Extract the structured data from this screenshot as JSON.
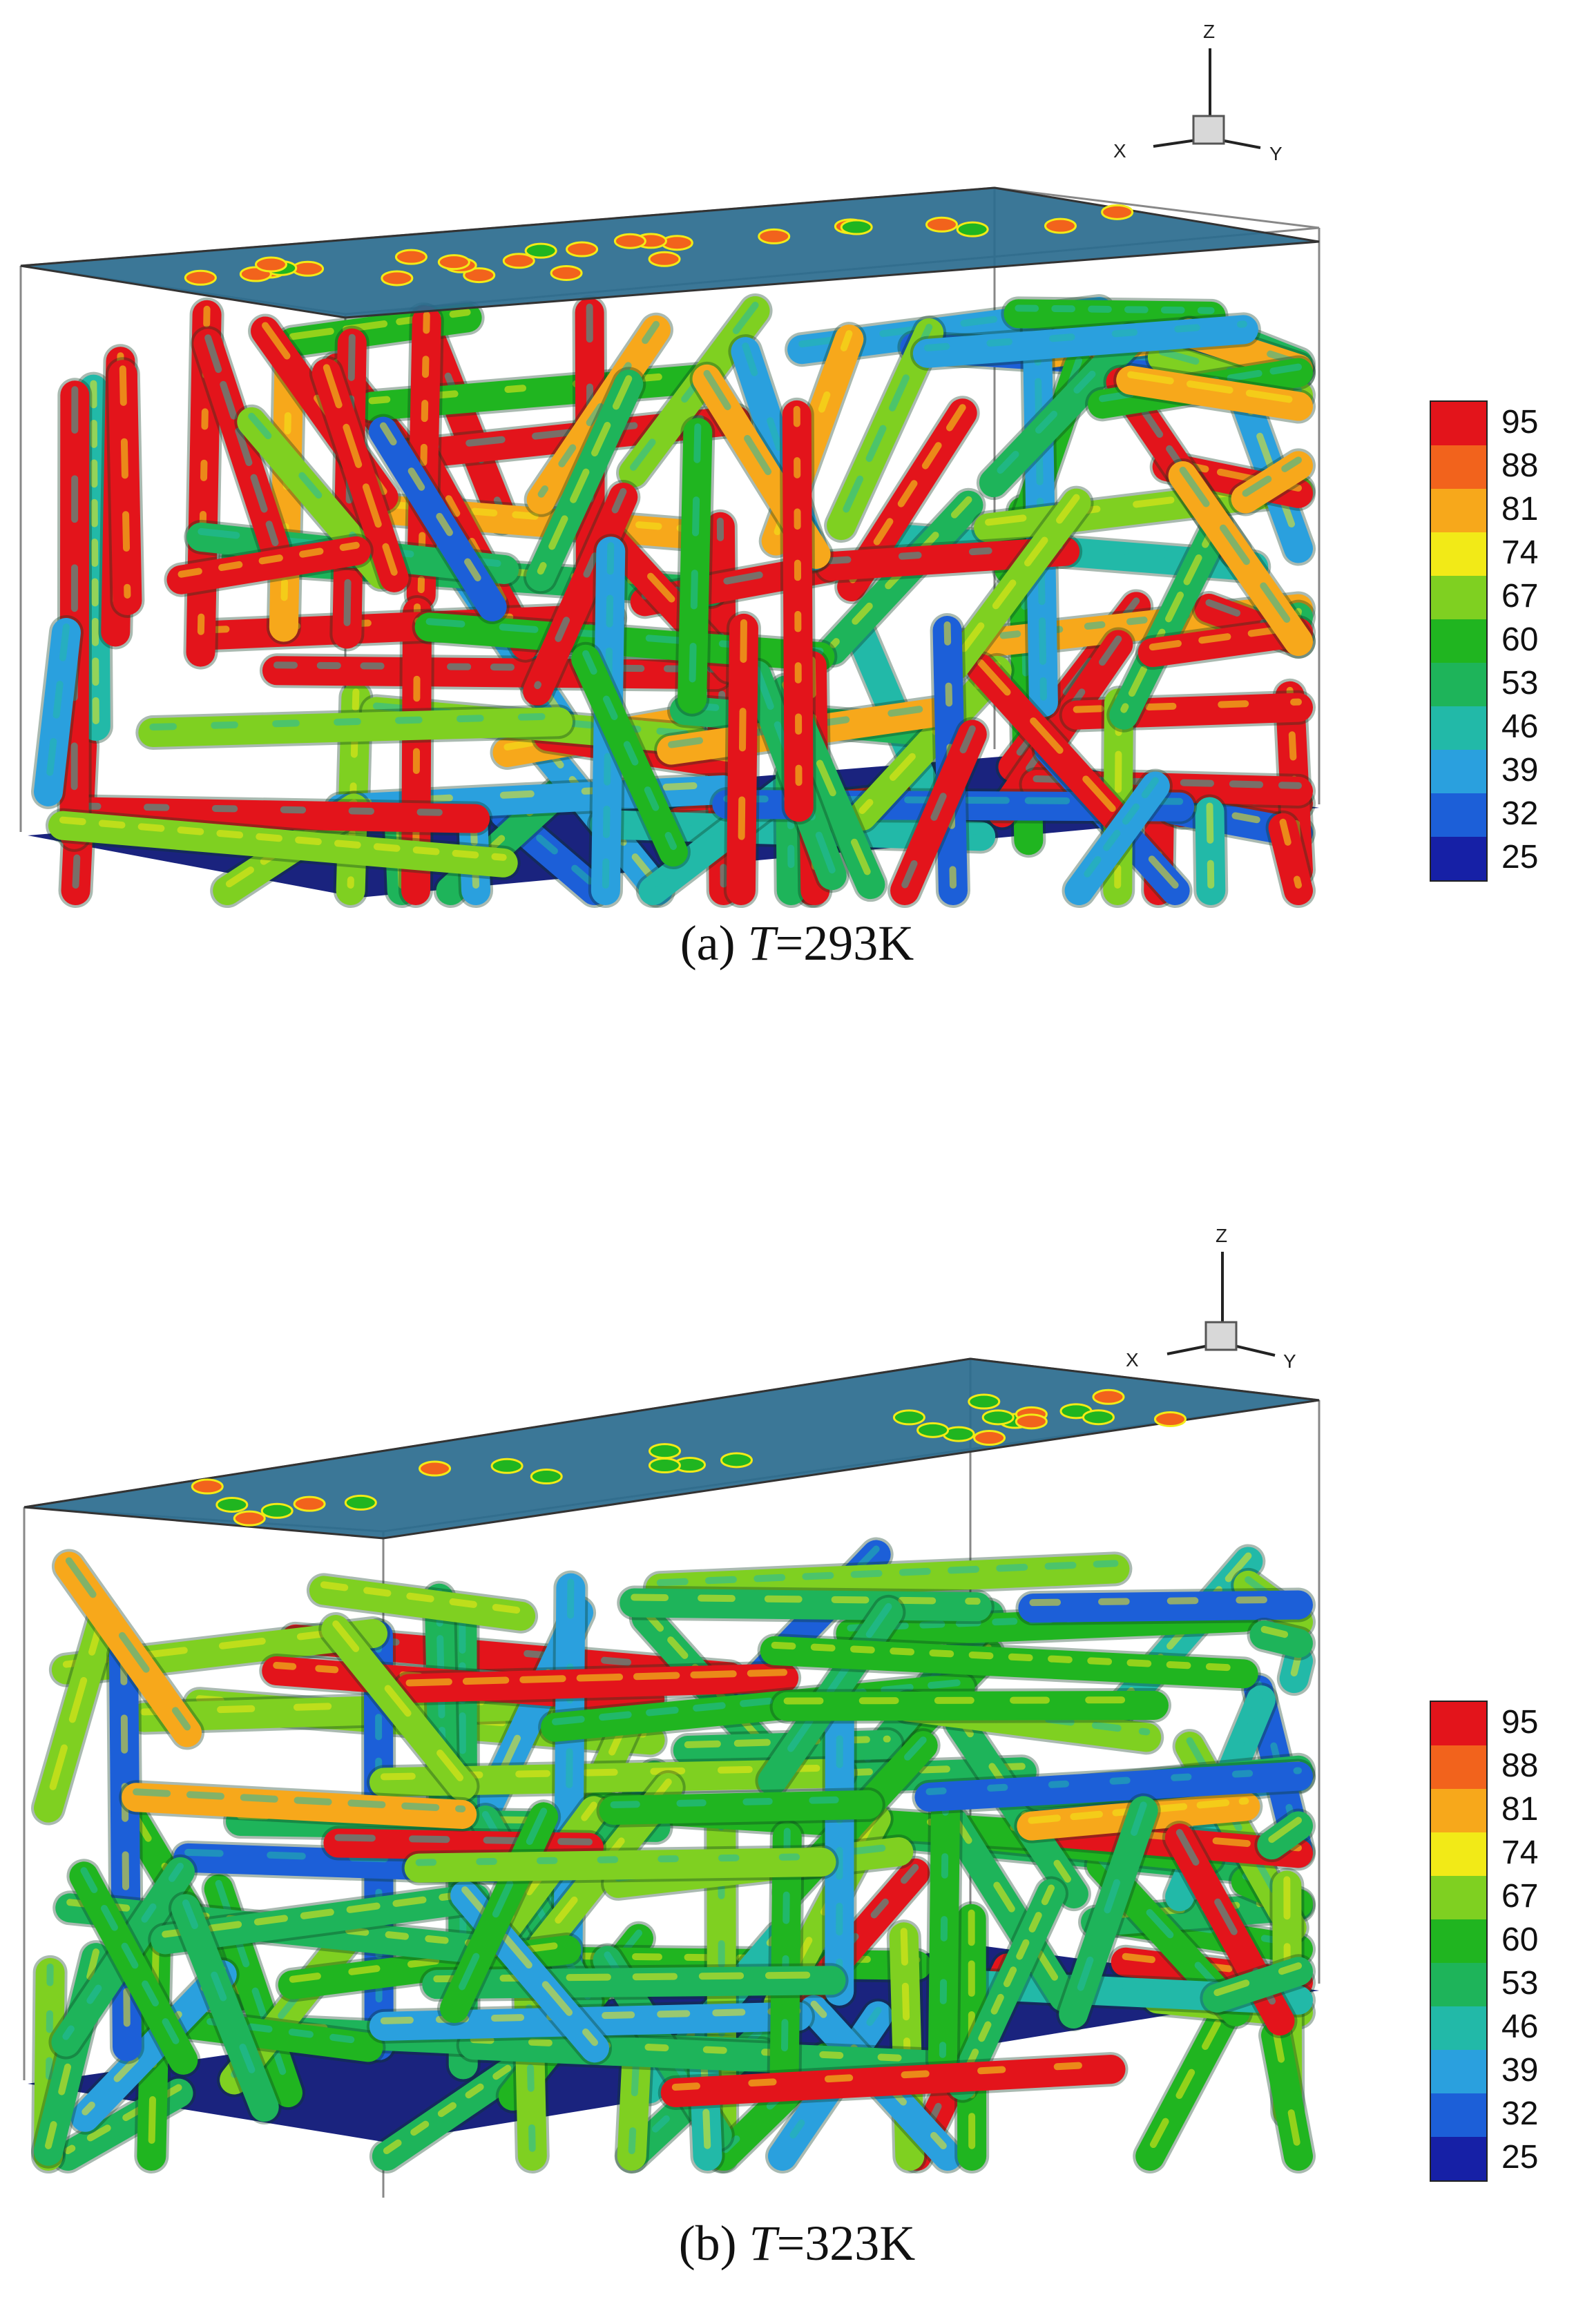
{
  "panels": [
    {
      "caption_prefix": "(a) ",
      "caption_var": "T",
      "caption_value": "=293K",
      "heat": 0.8
    },
    {
      "caption_prefix": "(b) ",
      "caption_var": "T",
      "caption_value": "=323K",
      "heat": 0.35
    }
  ],
  "colorbar": {
    "ticks": [
      "95",
      "88",
      "81",
      "74",
      "67",
      "60",
      "53",
      "46",
      "39",
      "32",
      "25"
    ],
    "colors": [
      "#e3141b",
      "#f2631c",
      "#f7a81b",
      "#f2ea17",
      "#7fd021",
      "#20b520",
      "#1eb45a",
      "#22b9a8",
      "#2aa0de",
      "#1c5fd8",
      "#1620a6"
    ]
  },
  "axes": {
    "z": "Z",
    "x": "X",
    "y": "Y"
  }
}
